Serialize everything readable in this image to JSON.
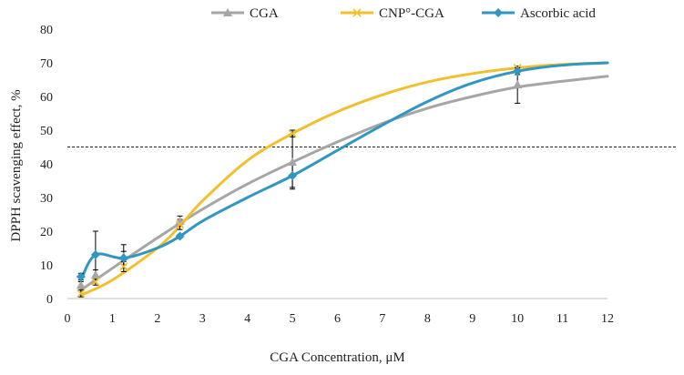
{
  "chart_data": {
    "type": "line",
    "xlabel": "CGA Concentration, μM",
    "ylabel": "DPPH scavenging effect, %",
    "xlim": [
      0,
      12
    ],
    "ylim": [
      0,
      80
    ],
    "xticks": [
      0,
      1,
      2,
      3,
      4,
      5,
      6,
      7,
      8,
      9,
      10,
      11,
      12
    ],
    "yticks": [
      0,
      10,
      20,
      30,
      40,
      50,
      60,
      70,
      80
    ],
    "grid": false,
    "legend_position": "top",
    "reference_line": {
      "y": 45,
      "style": "dashed"
    },
    "series": [
      {
        "name": "CGA",
        "color": "#A6A6A6",
        "marker": "triangle",
        "points": [
          {
            "x": 0.3,
            "y": 4,
            "err": 1
          },
          {
            "x": 0.625,
            "y": 7,
            "err": 1.5
          },
          {
            "x": 1.25,
            "y": 12.5,
            "err": 3.5
          },
          {
            "x": 2.5,
            "y": 23,
            "err": 1.5
          },
          {
            "x": 5,
            "y": 40.5,
            "err": 8
          },
          {
            "x": 10,
            "y": 63.5,
            "err": 5.5
          }
        ],
        "curve": [
          [
            0.3,
            2.5
          ],
          [
            1,
            9
          ],
          [
            2,
            18
          ],
          [
            3,
            26.5
          ],
          [
            4,
            34
          ],
          [
            5,
            40.5
          ],
          [
            6,
            46.5
          ],
          [
            7,
            52
          ],
          [
            8,
            56.5
          ],
          [
            9,
            60
          ],
          [
            10,
            62.8
          ],
          [
            11,
            64.5
          ],
          [
            12,
            66
          ]
        ]
      },
      {
        "name": "CNP°-CGA",
        "color": "#F2C02E",
        "marker": "x",
        "points": [
          {
            "x": 0.3,
            "y": 1.5,
            "err": 1
          },
          {
            "x": 0.625,
            "y": 5,
            "err": 1
          },
          {
            "x": 1.25,
            "y": 9.5,
            "err": 1.5
          },
          {
            "x": 2.5,
            "y": 22,
            "err": 1.5
          },
          {
            "x": 5,
            "y": 49,
            "err": 1
          },
          {
            "x": 10,
            "y": 68.5,
            "err": 0.5
          }
        ],
        "curve": [
          [
            0.3,
            1
          ],
          [
            1,
            5.5
          ],
          [
            2,
            15
          ],
          [
            2.5,
            21.5
          ],
          [
            3,
            29
          ],
          [
            4,
            41
          ],
          [
            5,
            49
          ],
          [
            6,
            55.5
          ],
          [
            7,
            60.5
          ],
          [
            8,
            64.3
          ],
          [
            9,
            66.8
          ],
          [
            10,
            68.5
          ],
          [
            11,
            69.5
          ],
          [
            12,
            70
          ]
        ]
      },
      {
        "name": "Ascorbic acid",
        "color": "#2F97C1",
        "marker": "diamond",
        "points": [
          {
            "x": 0.3,
            "y": 6.5,
            "err": 1
          },
          {
            "x": 0.625,
            "y": 13,
            "err": 7
          },
          {
            "x": 1.25,
            "y": 12,
            "err": 2
          },
          {
            "x": 2.5,
            "y": 18.5,
            "err": 0.5
          },
          {
            "x": 5,
            "y": 36.5,
            "err": 3.5
          },
          {
            "x": 10,
            "y": 67.5,
            "err": 1
          }
        ],
        "curve": [
          [
            0.3,
            5.5
          ],
          [
            0.625,
            13
          ],
          [
            1.25,
            12
          ],
          [
            2,
            15
          ],
          [
            2.5,
            18.5
          ],
          [
            3,
            23
          ],
          [
            4,
            30
          ],
          [
            5,
            36.5
          ],
          [
            6,
            44
          ],
          [
            7,
            51.5
          ],
          [
            8,
            58.5
          ],
          [
            9,
            64
          ],
          [
            10,
            67.5
          ],
          [
            11,
            69.3
          ],
          [
            12,
            70
          ]
        ]
      }
    ]
  }
}
